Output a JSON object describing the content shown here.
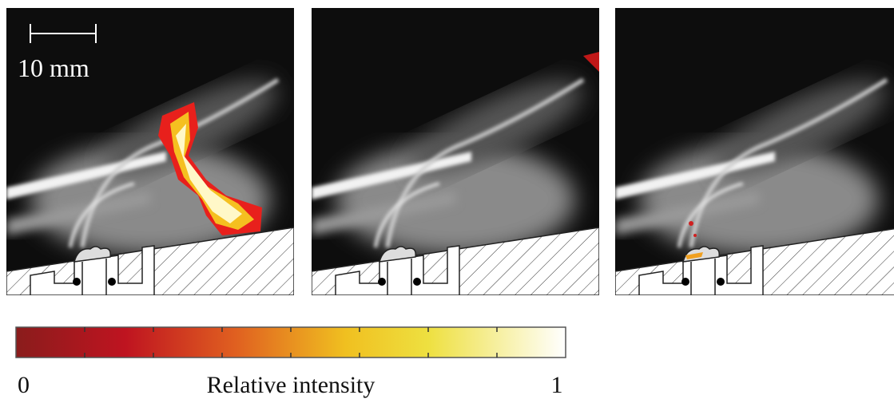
{
  "scale_bar": {
    "label": "10 mm"
  },
  "colorbar": {
    "title": "Relative intensity",
    "range": [
      0,
      1
    ]
  }
}
